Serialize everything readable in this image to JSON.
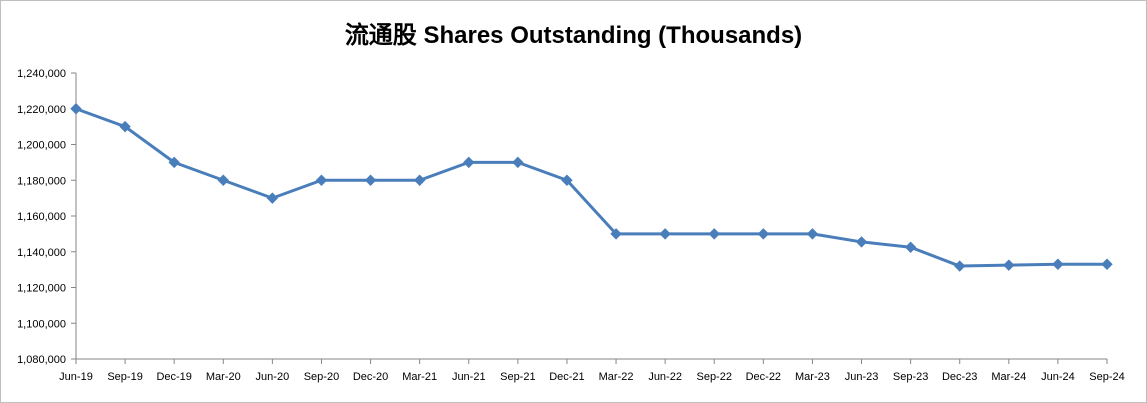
{
  "chart_data": {
    "type": "line",
    "title": "流通股 Shares Outstanding (Thousands)",
    "xlabel": "",
    "ylabel": "",
    "ylim": [
      1080000,
      1240000
    ],
    "ytick_step": 20000,
    "yticks": [
      "1,080,000",
      "1,100,000",
      "1,120,000",
      "1,140,000",
      "1,160,000",
      "1,180,000",
      "1,200,000",
      "1,220,000",
      "1,240,000"
    ],
    "grid": false,
    "legend": "none",
    "categories": [
      "Jun-19",
      "Sep-19",
      "Dec-19",
      "Mar-20",
      "Jun-20",
      "Sep-20",
      "Dec-20",
      "Mar-21",
      "Jun-21",
      "Sep-21",
      "Dec-21",
      "Mar-22",
      "Jun-22",
      "Sep-22",
      "Dec-22",
      "Mar-23",
      "Jun-23",
      "Sep-23",
      "Dec-23",
      "Mar-24",
      "Jun-24",
      "Sep-24"
    ],
    "series": [
      {
        "values": [
          1220000,
          1210000,
          1190000,
          1180000,
          1170000,
          1180000,
          1180000,
          1180000,
          1190000,
          1190000,
          1180000,
          1150000,
          1150000,
          1150000,
          1150000,
          1150000,
          1145500,
          1142500,
          1132000,
          1132500,
          1133000,
          1133000
        ],
        "color": "#4a7ebb",
        "marker": "diamond"
      }
    ]
  }
}
